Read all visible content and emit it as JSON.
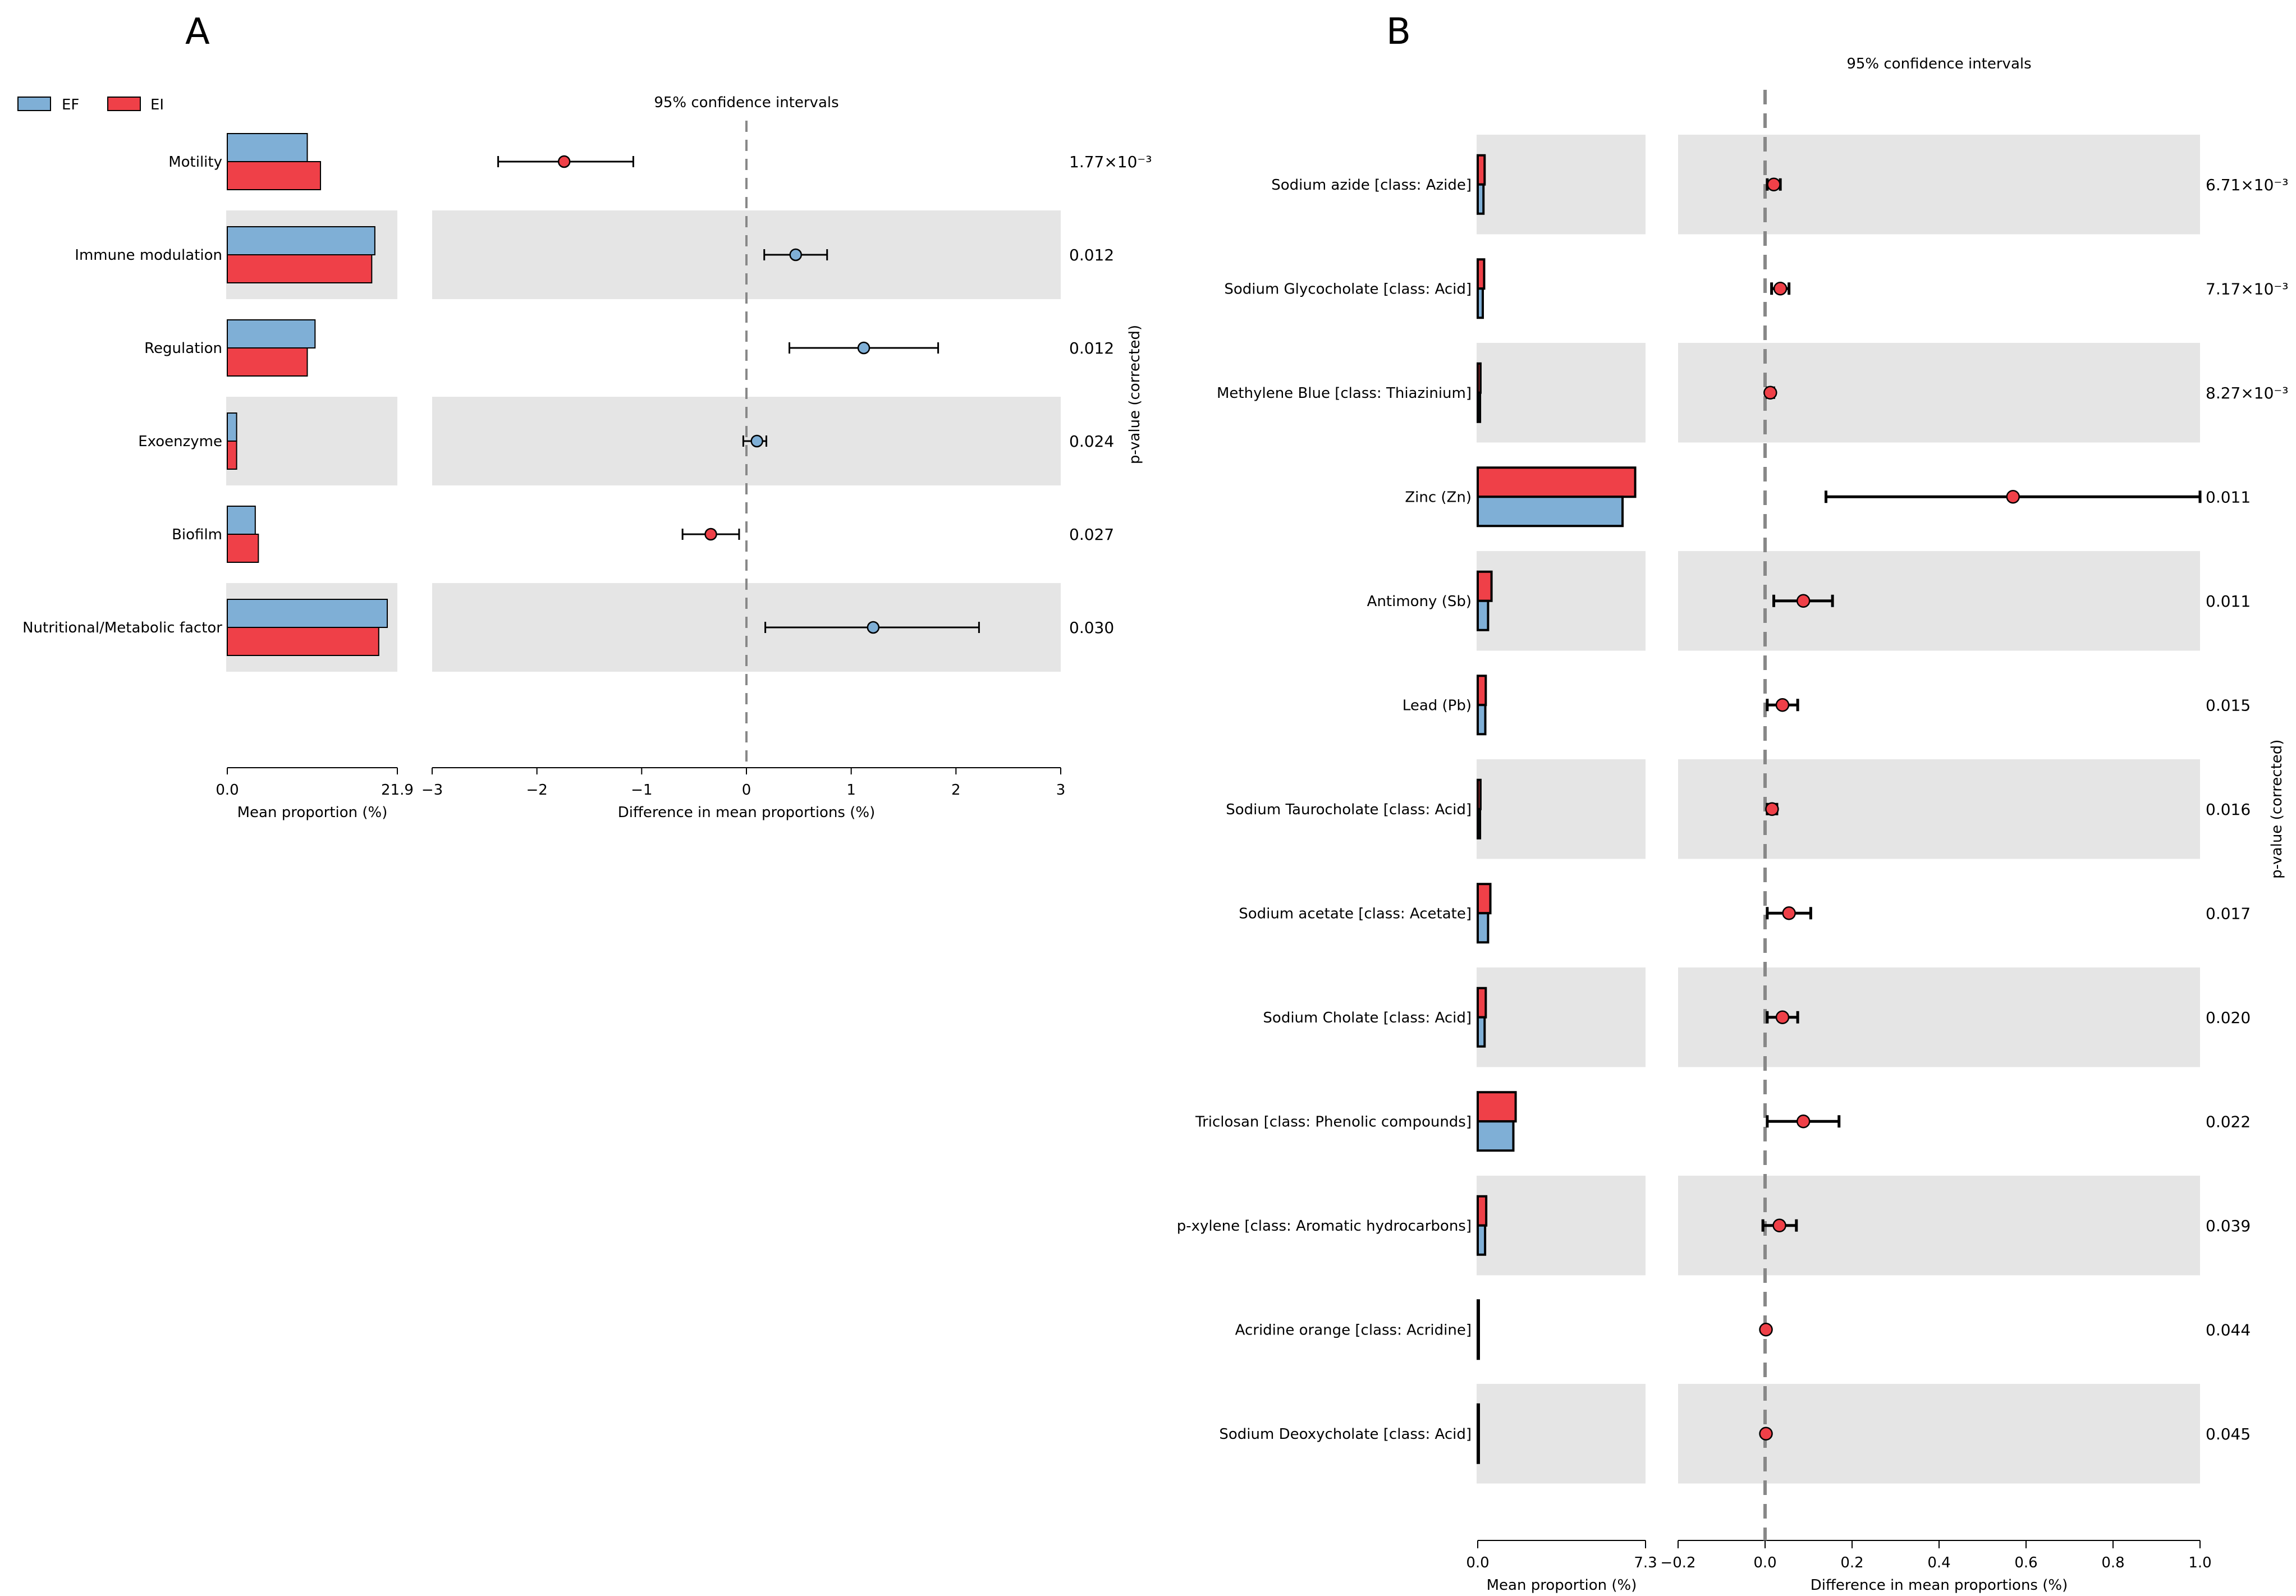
{
  "legend": [
    {
      "name": "EF",
      "color": "#7fafd6"
    },
    {
      "name": "EI",
      "color": "#ef4048"
    }
  ],
  "colors": {
    "EF": "#7fafd6",
    "EI": "#ef4048",
    "band": "#e5e5e5",
    "zero_line": "#888888"
  },
  "chart_data": [
    {
      "panel": "A",
      "type": "bar",
      "title": "95% confidence intervals",
      "categories": [
        "Motility",
        "Immune modulation",
        "Regulation",
        "Exoenzyme",
        "Biofilm",
        "Nutritional/Metabolic factor"
      ],
      "series": [
        {
          "name": "EF",
          "values": [
            10.3,
            19.0,
            11.3,
            1.2,
            3.6,
            20.6
          ]
        },
        {
          "name": "EI",
          "values": [
            12.0,
            18.6,
            10.3,
            1.2,
            4.0,
            19.5
          ]
        }
      ],
      "bar_axis": {
        "xlabel": "Mean proportion (%)",
        "xlim": [
          0,
          21.9
        ],
        "ticks": [
          "0.0",
          "21.9"
        ]
      },
      "ci": {
        "xlabel": "Difference in mean proportions (%)",
        "xlim": [
          -3,
          3
        ],
        "ticks": [
          "−3",
          "−2",
          "−1",
          "0",
          "1",
          "2",
          "3"
        ],
        "diff": [
          -1.74,
          0.47,
          1.12,
          0.1,
          -0.34,
          1.21
        ],
        "low": [
          -2.37,
          0.17,
          0.41,
          -0.03,
          -0.61,
          0.18
        ],
        "high": [
          -1.08,
          0.77,
          1.83,
          0.19,
          -0.07,
          2.22
        ],
        "favors": [
          "EI",
          "EF",
          "EF",
          "EF",
          "EI",
          "EF"
        ]
      },
      "pvalues": [
        "1.77×10⁻³",
        "0.012",
        "0.012",
        "0.024",
        "0.027",
        "0.030"
      ],
      "pvalue_label": "p-value (corrected)"
    },
    {
      "panel": "B",
      "type": "bar",
      "title": "95% confidence intervals",
      "categories": [
        "Sodium azide [class: Azide]",
        "Sodium Glycocholate [class: Acid]",
        "Methylene Blue [class: Thiazinium]",
        "Zinc (Zn)",
        "Antimony (Sb)",
        "Lead (Pb)",
        "Sodium Taurocholate [class: Acid]",
        "Sodium acetate [class: Acetate]",
        "Sodium Cholate [class: Acid]",
        "Triclosan [class: Phenolic compounds]",
        "p-xylene [class: Aromatic hydrocarbons]",
        "Acridine orange [class: Acridine]",
        "Sodium Deoxycholate [class: Acid]"
      ],
      "series": [
        {
          "name": "EF",
          "values": [
            0.25,
            0.22,
            0.1,
            6.3,
            0.45,
            0.33,
            0.1,
            0.45,
            0.3,
            1.55,
            0.32,
            0.04,
            0.04
          ]
        },
        {
          "name": "EI",
          "values": [
            0.3,
            0.28,
            0.12,
            6.85,
            0.6,
            0.35,
            0.12,
            0.55,
            0.35,
            1.65,
            0.37,
            0.04,
            0.04
          ]
        }
      ],
      "bar_axis": {
        "xlabel": "Mean proportion (%)",
        "xlim": [
          0,
          7.3
        ],
        "ticks": [
          "0.0",
          "7.3"
        ]
      },
      "ci": {
        "xlabel": "Difference in mean proportions (%)",
        "xlim": [
          -0.2,
          1.0
        ],
        "ticks": [
          "−0.2",
          "0.0",
          "0.2",
          "0.4",
          "0.6",
          "0.8",
          "1.0"
        ],
        "diff": [
          0.02,
          0.035,
          0.012,
          0.57,
          0.088,
          0.04,
          0.016,
          0.055,
          0.04,
          0.088,
          0.033,
          0.002,
          0.002
        ],
        "low": [
          0.005,
          0.015,
          0.005,
          0.14,
          0.02,
          0.005,
          0.005,
          0.005,
          0.005,
          0.005,
          -0.005,
          0.0,
          0.0
        ],
        "high": [
          0.035,
          0.055,
          0.02,
          1.0,
          0.155,
          0.075,
          0.027,
          0.105,
          0.075,
          0.17,
          0.072,
          0.004,
          0.004
        ],
        "favors": [
          "EI",
          "EI",
          "EI",
          "EI",
          "EI",
          "EI",
          "EI",
          "EI",
          "EI",
          "EI",
          "EI",
          "EI",
          "EI"
        ]
      },
      "pvalues": [
        "6.71×10⁻³",
        "7.17×10⁻³",
        "8.27×10⁻³",
        "0.011",
        "0.011",
        "0.015",
        "0.016",
        "0.017",
        "0.020",
        "0.022",
        "0.039",
        "0.044",
        "0.045"
      ],
      "pvalue_label": "p-value (corrected)"
    }
  ]
}
